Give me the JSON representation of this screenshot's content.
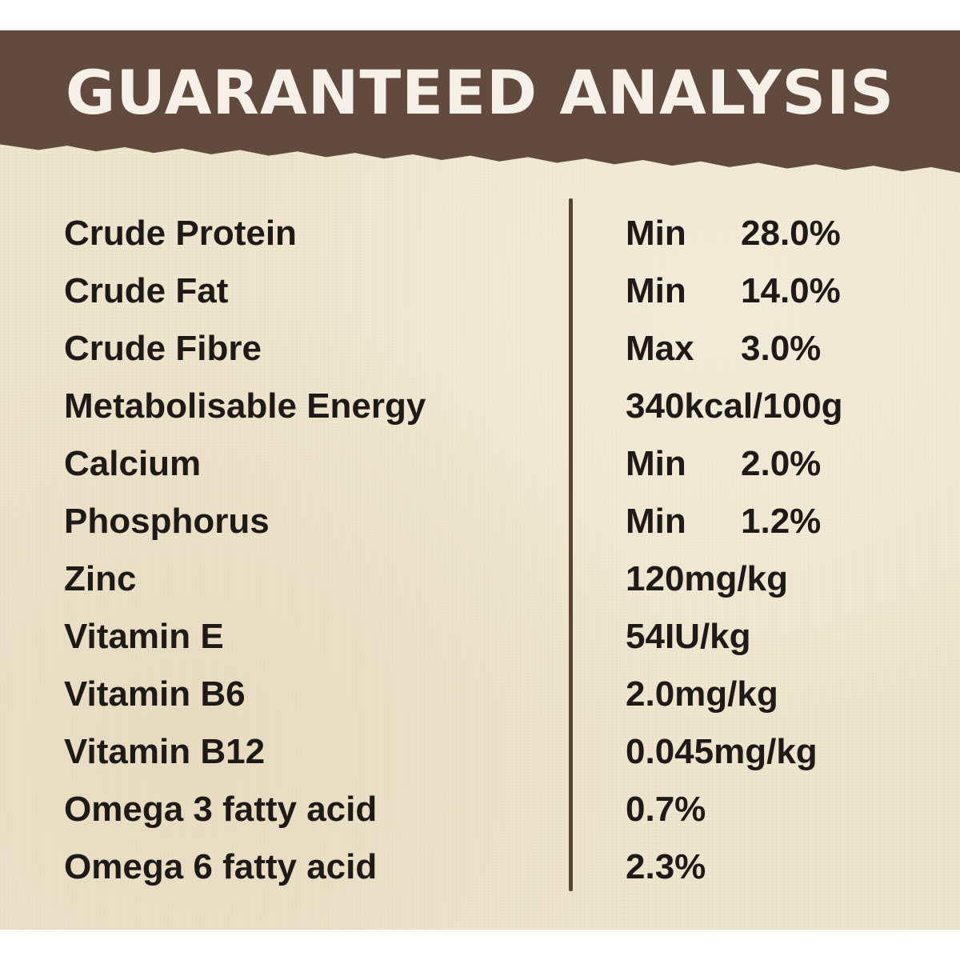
{
  "header": {
    "title": "GUARANTEED ANALYSIS"
  },
  "rows": [
    {
      "label": "Crude Protein",
      "qualifier": "Min",
      "value": "28.0%"
    },
    {
      "label": "Crude Fat",
      "qualifier": "Min",
      "value": "14.0%"
    },
    {
      "label": "Crude Fibre",
      "qualifier": "Max",
      "value": "3.0%"
    },
    {
      "label": "Metabolisable Energy",
      "qualifier": "",
      "value": "340kcal/100g"
    },
    {
      "label": "Calcium",
      "qualifier": "Min",
      "value": "2.0%"
    },
    {
      "label": "Phosphorus",
      "qualifier": "Min",
      "value": "1.2%"
    },
    {
      "label": "Zinc",
      "qualifier": "",
      "value": "120mg/kg"
    },
    {
      "label": "Vitamin E",
      "qualifier": "",
      "value": "54IU/kg"
    },
    {
      "label": "Vitamin B6",
      "qualifier": "",
      "value": "2.0mg/kg"
    },
    {
      "label": "Vitamin B12",
      "qualifier": "",
      "value": "0.045mg/kg"
    },
    {
      "label": "Omega 3 fatty acid",
      "qualifier": "",
      "value": "0.7%"
    },
    {
      "label": "Omega 6 fatty acid",
      "qualifier": "",
      "value": "2.3%"
    }
  ],
  "colors": {
    "banner": "#624b3e",
    "background": "#efe6cf",
    "text": "#1e1a18",
    "title": "#f6f1e8"
  }
}
